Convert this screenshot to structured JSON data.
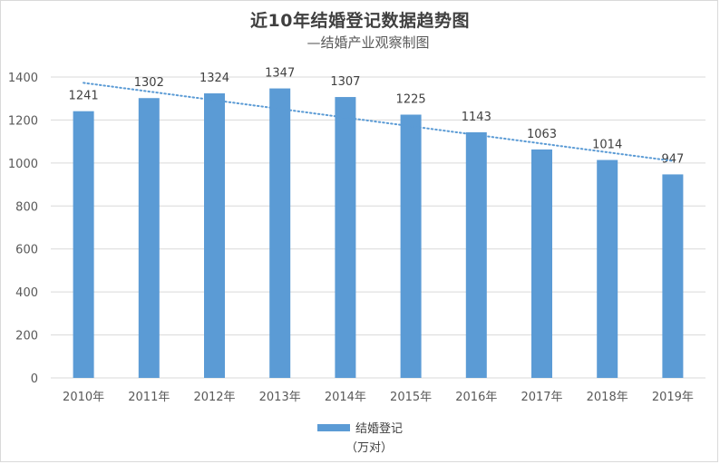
{
  "title": "近10年结婚登记数据趋势图",
  "subtitle": "—结婚产业观察制图",
  "legend": {
    "label": "结婚登记",
    "unit": "（万对）"
  },
  "colors": {
    "bar": "#5b9bd5",
    "trendline": "#5b9bd5",
    "grid": "#d9d9d9",
    "text": "#595959"
  },
  "chart_data": {
    "type": "bar",
    "categories": [
      "2010年",
      "2011年",
      "2012年",
      "2013年",
      "2014年",
      "2015年",
      "2016年",
      "2017年",
      "2018年",
      "2019年"
    ],
    "series": [
      {
        "name": "结婚登记",
        "values": [
          1241,
          1302,
          1324,
          1347,
          1307,
          1225,
          1143,
          1063,
          1014,
          947
        ]
      }
    ],
    "ylim": [
      0,
      1400
    ],
    "yticks": [
      0,
      200,
      400,
      600,
      800,
      1000,
      1200,
      1400
    ],
    "grid": true,
    "legend_position": "bottom",
    "trendline": {
      "type": "linear",
      "style": "dotted"
    },
    "data_labels": true
  }
}
